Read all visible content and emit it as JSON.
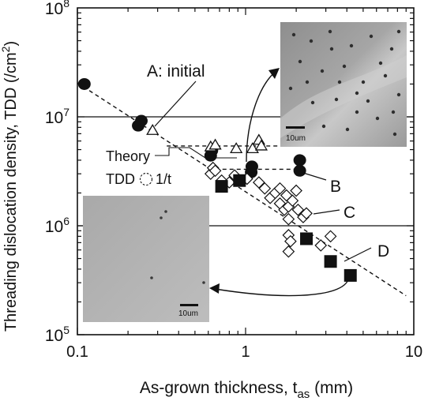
{
  "chart_data": {
    "type": "scatter",
    "xscale": "log",
    "yscale": "log",
    "xlim": [
      0.1,
      10
    ],
    "ylim": [
      100000,
      100000000
    ],
    "x_ticks": [
      {
        "v": 0.1,
        "label": "0.1"
      },
      {
        "v": 1,
        "label": "1"
      },
      {
        "v": 10,
        "label": "10"
      }
    ],
    "y_ticks": [
      {
        "v": 100000,
        "base": "10",
        "exp": "5"
      },
      {
        "v": 1000000,
        "base": "10",
        "exp": "6"
      },
      {
        "v": 10000000,
        "base": "10",
        "exp": "7"
      },
      {
        "v": 100000000,
        "base": "10",
        "exp": "8"
      }
    ],
    "xlabel": {
      "main": "As-grown thickness, t",
      "sub": "as",
      "unit": " (mm)"
    },
    "ylabel": {
      "main": "Threading dislocation density, TDD (/cm",
      "sup": "2",
      "end": ")"
    },
    "hlines": [
      10000000,
      1000000
    ],
    "theory_line": {
      "x": [
        0.1,
        9
      ],
      "y": [
        20500000,
        228000
      ]
    },
    "series": [
      {
        "marker": "filled-circle",
        "points": [
          [
            0.11,
            20000000
          ],
          [
            0.23,
            8300000
          ],
          [
            0.24,
            9200000
          ],
          [
            0.62,
            4400000
          ],
          [
            0.63,
            4900000
          ],
          [
            1.08,
            3100000
          ],
          [
            1.09,
            3500000
          ],
          [
            2.1,
            4000000
          ],
          [
            2.1,
            3200000
          ]
        ]
      },
      {
        "marker": "open-triangle",
        "points": [
          [
            0.28,
            7500000
          ],
          [
            0.62,
            5300000
          ],
          [
            0.66,
            5500000
          ],
          [
            0.88,
            5100000
          ],
          [
            1.1,
            5100000
          ],
          [
            1.2,
            6100000
          ],
          [
            1.24,
            5400000
          ]
        ]
      },
      {
        "marker": "open-diamond",
        "points": [
          [
            0.62,
            3000000
          ],
          [
            0.64,
            3400000
          ],
          [
            0.66,
            3200000
          ],
          [
            0.72,
            2600000
          ],
          [
            0.8,
            2500000
          ],
          [
            0.86,
            2900000
          ],
          [
            1.02,
            2700000
          ],
          [
            1.2,
            2500000
          ],
          [
            1.3,
            2200000
          ],
          [
            1.4,
            1800000
          ],
          [
            1.5,
            2000000
          ],
          [
            1.6,
            2200000
          ],
          [
            1.6,
            1600000
          ],
          [
            1.7,
            1400000
          ],
          [
            1.75,
            1900000
          ],
          [
            1.8,
            1500000
          ],
          [
            1.8,
            1150000
          ],
          [
            1.9,
            1700000
          ],
          [
            2,
            2100000
          ],
          [
            2.05,
            1400000
          ],
          [
            2.2,
            1200000
          ],
          [
            2.3,
            1300000
          ],
          [
            1.8,
            820000
          ],
          [
            1.85,
            720000
          ],
          [
            1.8,
            580000
          ],
          [
            2.8,
            660000
          ],
          [
            3.2,
            800000
          ]
        ]
      },
      {
        "marker": "filled-square",
        "points": [
          [
            0.72,
            2300000
          ],
          [
            0.92,
            2600000
          ],
          [
            2.3,
            760000
          ],
          [
            3.2,
            470000
          ],
          [
            4.2,
            350000
          ]
        ]
      }
    ],
    "dashed_segments": [
      {
        "x": [
          0.34,
          2.1
        ],
        "y": 5400000
      },
      {
        "x": [
          0.6,
          2.1
        ],
        "y": 3300000
      }
    ],
    "annotations": {
      "a": "A: initial",
      "b": "B",
      "c": "C",
      "d": "D",
      "theory_title": "Theory",
      "theory_prefix": "TDD",
      "theory_suffix": "1/t"
    },
    "insets": [
      {
        "scale_label": "10um",
        "tone": "dark-pits"
      },
      {
        "scale_label": "10um",
        "tone": "light-sparse"
      }
    ]
  }
}
